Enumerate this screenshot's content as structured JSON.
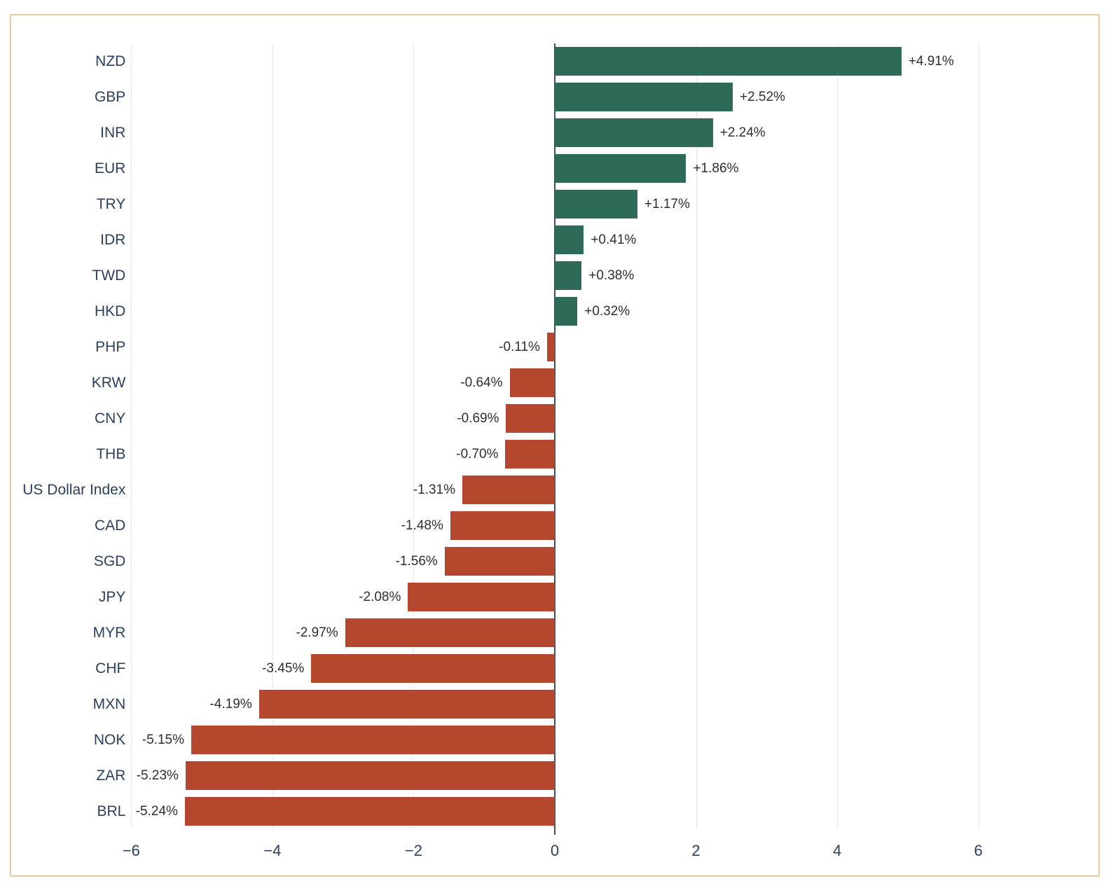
{
  "frame": {
    "border_color": "#eac9a0",
    "background": "#ffffff"
  },
  "chart_data": {
    "type": "bar",
    "orientation": "horizontal",
    "title": "",
    "xlabel": "",
    "ylabel": "",
    "legend": false,
    "grid": true,
    "categories": [
      "NZD",
      "GBP",
      "INR",
      "EUR",
      "TRY",
      "IDR",
      "TWD",
      "HKD",
      "PHP",
      "KRW",
      "CNY",
      "THB",
      "US Dollar Index",
      "CAD",
      "SGD",
      "JPY",
      "MYR",
      "CHF",
      "MXN",
      "NOK",
      "ZAR",
      "BRL"
    ],
    "values": [
      4.91,
      2.52,
      2.24,
      1.86,
      1.17,
      0.41,
      0.38,
      0.32,
      -0.11,
      -0.64,
      -0.69,
      -0.7,
      -1.31,
      -1.48,
      -1.56,
      -2.08,
      -2.97,
      -3.45,
      -4.19,
      -5.15,
      -5.23,
      -5.24
    ],
    "value_labels": [
      "+4.91%",
      "+2.52%",
      "+2.24%",
      "+1.86%",
      "+1.17%",
      "+0.41%",
      "+0.38%",
      "+0.32%",
      "-0.11%",
      "-0.64%",
      "-0.69%",
      "-0.70%",
      "-1.31%",
      "-1.48%",
      "-1.56%",
      "-2.08%",
      "-2.97%",
      "-3.45%",
      "-4.19%",
      "-5.15%",
      "-5.23%",
      "-5.24%"
    ],
    "positive_color": "#2d6a57",
    "negative_color": "#b5472e",
    "grid_color": "#e8e8e8",
    "zero_line_color": "#3c4d61",
    "category_label_color": "#2a3f5f",
    "value_label_color": "#2e2e2e",
    "tick_label_color": "#2a3f5f",
    "xlim": [
      -7.7,
      7.7
    ],
    "xticks": [
      {
        "value": -6,
        "label": "−6"
      },
      {
        "value": -4,
        "label": "−4"
      },
      {
        "value": -2,
        "label": "−2"
      },
      {
        "value": 0,
        "label": "0"
      },
      {
        "value": 2,
        "label": "2"
      },
      {
        "value": 4,
        "label": "4"
      },
      {
        "value": 6,
        "label": "6"
      }
    ]
  }
}
